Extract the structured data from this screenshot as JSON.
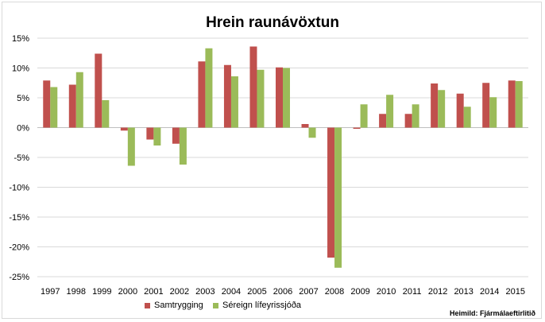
{
  "chart_data": {
    "type": "bar",
    "title": "Hrein raunávöxtun",
    "categories": [
      "1997",
      "1998",
      "1999",
      "2000",
      "2001",
      "2002",
      "2003",
      "2004",
      "2005",
      "2006",
      "2007",
      "2008",
      "2009",
      "2010",
      "2011",
      "2012",
      "2013",
      "2014",
      "2015"
    ],
    "series": [
      {
        "name": "Samtrygging",
        "color": "#c0504d",
        "values": [
          7.9,
          7.2,
          12.4,
          -0.5,
          -2.0,
          -2.7,
          11.1,
          10.5,
          13.6,
          10.1,
          0.6,
          -21.8,
          -0.2,
          2.3,
          2.3,
          7.4,
          5.7,
          7.5,
          7.9
        ]
      },
      {
        "name": "Séreign lífeyrissjóða",
        "color": "#9bbb59",
        "values": [
          6.8,
          9.3,
          4.6,
          -6.4,
          -3.0,
          -6.2,
          13.3,
          8.6,
          9.7,
          10.0,
          -1.7,
          -23.5,
          3.9,
          5.5,
          3.9,
          6.3,
          3.5,
          5.1,
          7.8
        ]
      }
    ],
    "yticks": [
      "15%",
      "10%",
      "5%",
      "0%",
      "-5%",
      "-10%",
      "-15%",
      "-20%",
      "-25%"
    ],
    "ylim": [
      -25,
      15
    ],
    "grid": true,
    "legend_position": "bottom-left",
    "source": "Heimild: Fjármálaeftirlitið"
  }
}
